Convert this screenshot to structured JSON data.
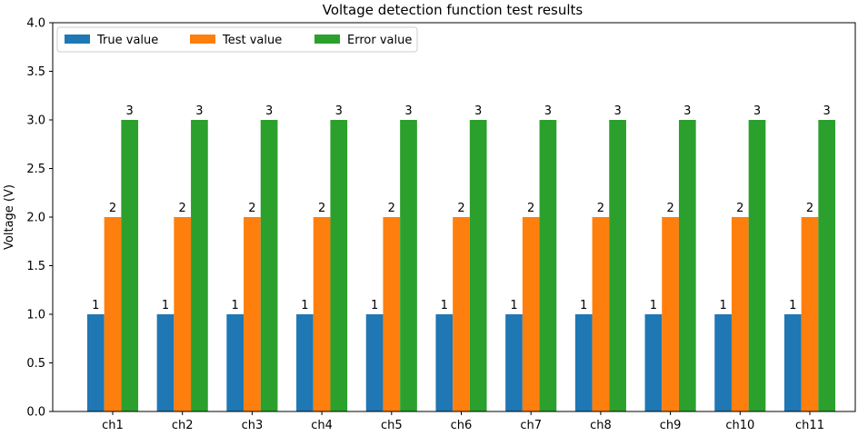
{
  "chart_data": {
    "type": "bar",
    "title": "Voltage detection function test results",
    "xlabel": "",
    "ylabel": "Voltage (V)",
    "ylim": [
      0,
      4.0
    ],
    "yticks": [
      "0.0",
      "0.5",
      "1.0",
      "1.5",
      "2.0",
      "2.5",
      "3.0",
      "3.5",
      "4.0"
    ],
    "grid": false,
    "legend_position": "top-left",
    "categories": [
      "ch1",
      "ch2",
      "ch3",
      "ch4",
      "ch5",
      "ch6",
      "ch7",
      "ch8",
      "ch9",
      "ch10",
      "ch11"
    ],
    "series": [
      {
        "name": "True value",
        "color": "#1f77b4",
        "values": [
          1,
          1,
          1,
          1,
          1,
          1,
          1,
          1,
          1,
          1,
          1
        ]
      },
      {
        "name": "Test value",
        "color": "#ff7f0e",
        "values": [
          2,
          2,
          2,
          2,
          2,
          2,
          2,
          2,
          2,
          2,
          2
        ]
      },
      {
        "name": "Error value",
        "color": "#2ca02c",
        "values": [
          3,
          3,
          3,
          3,
          3,
          3,
          3,
          3,
          3,
          3,
          3
        ]
      }
    ]
  }
}
